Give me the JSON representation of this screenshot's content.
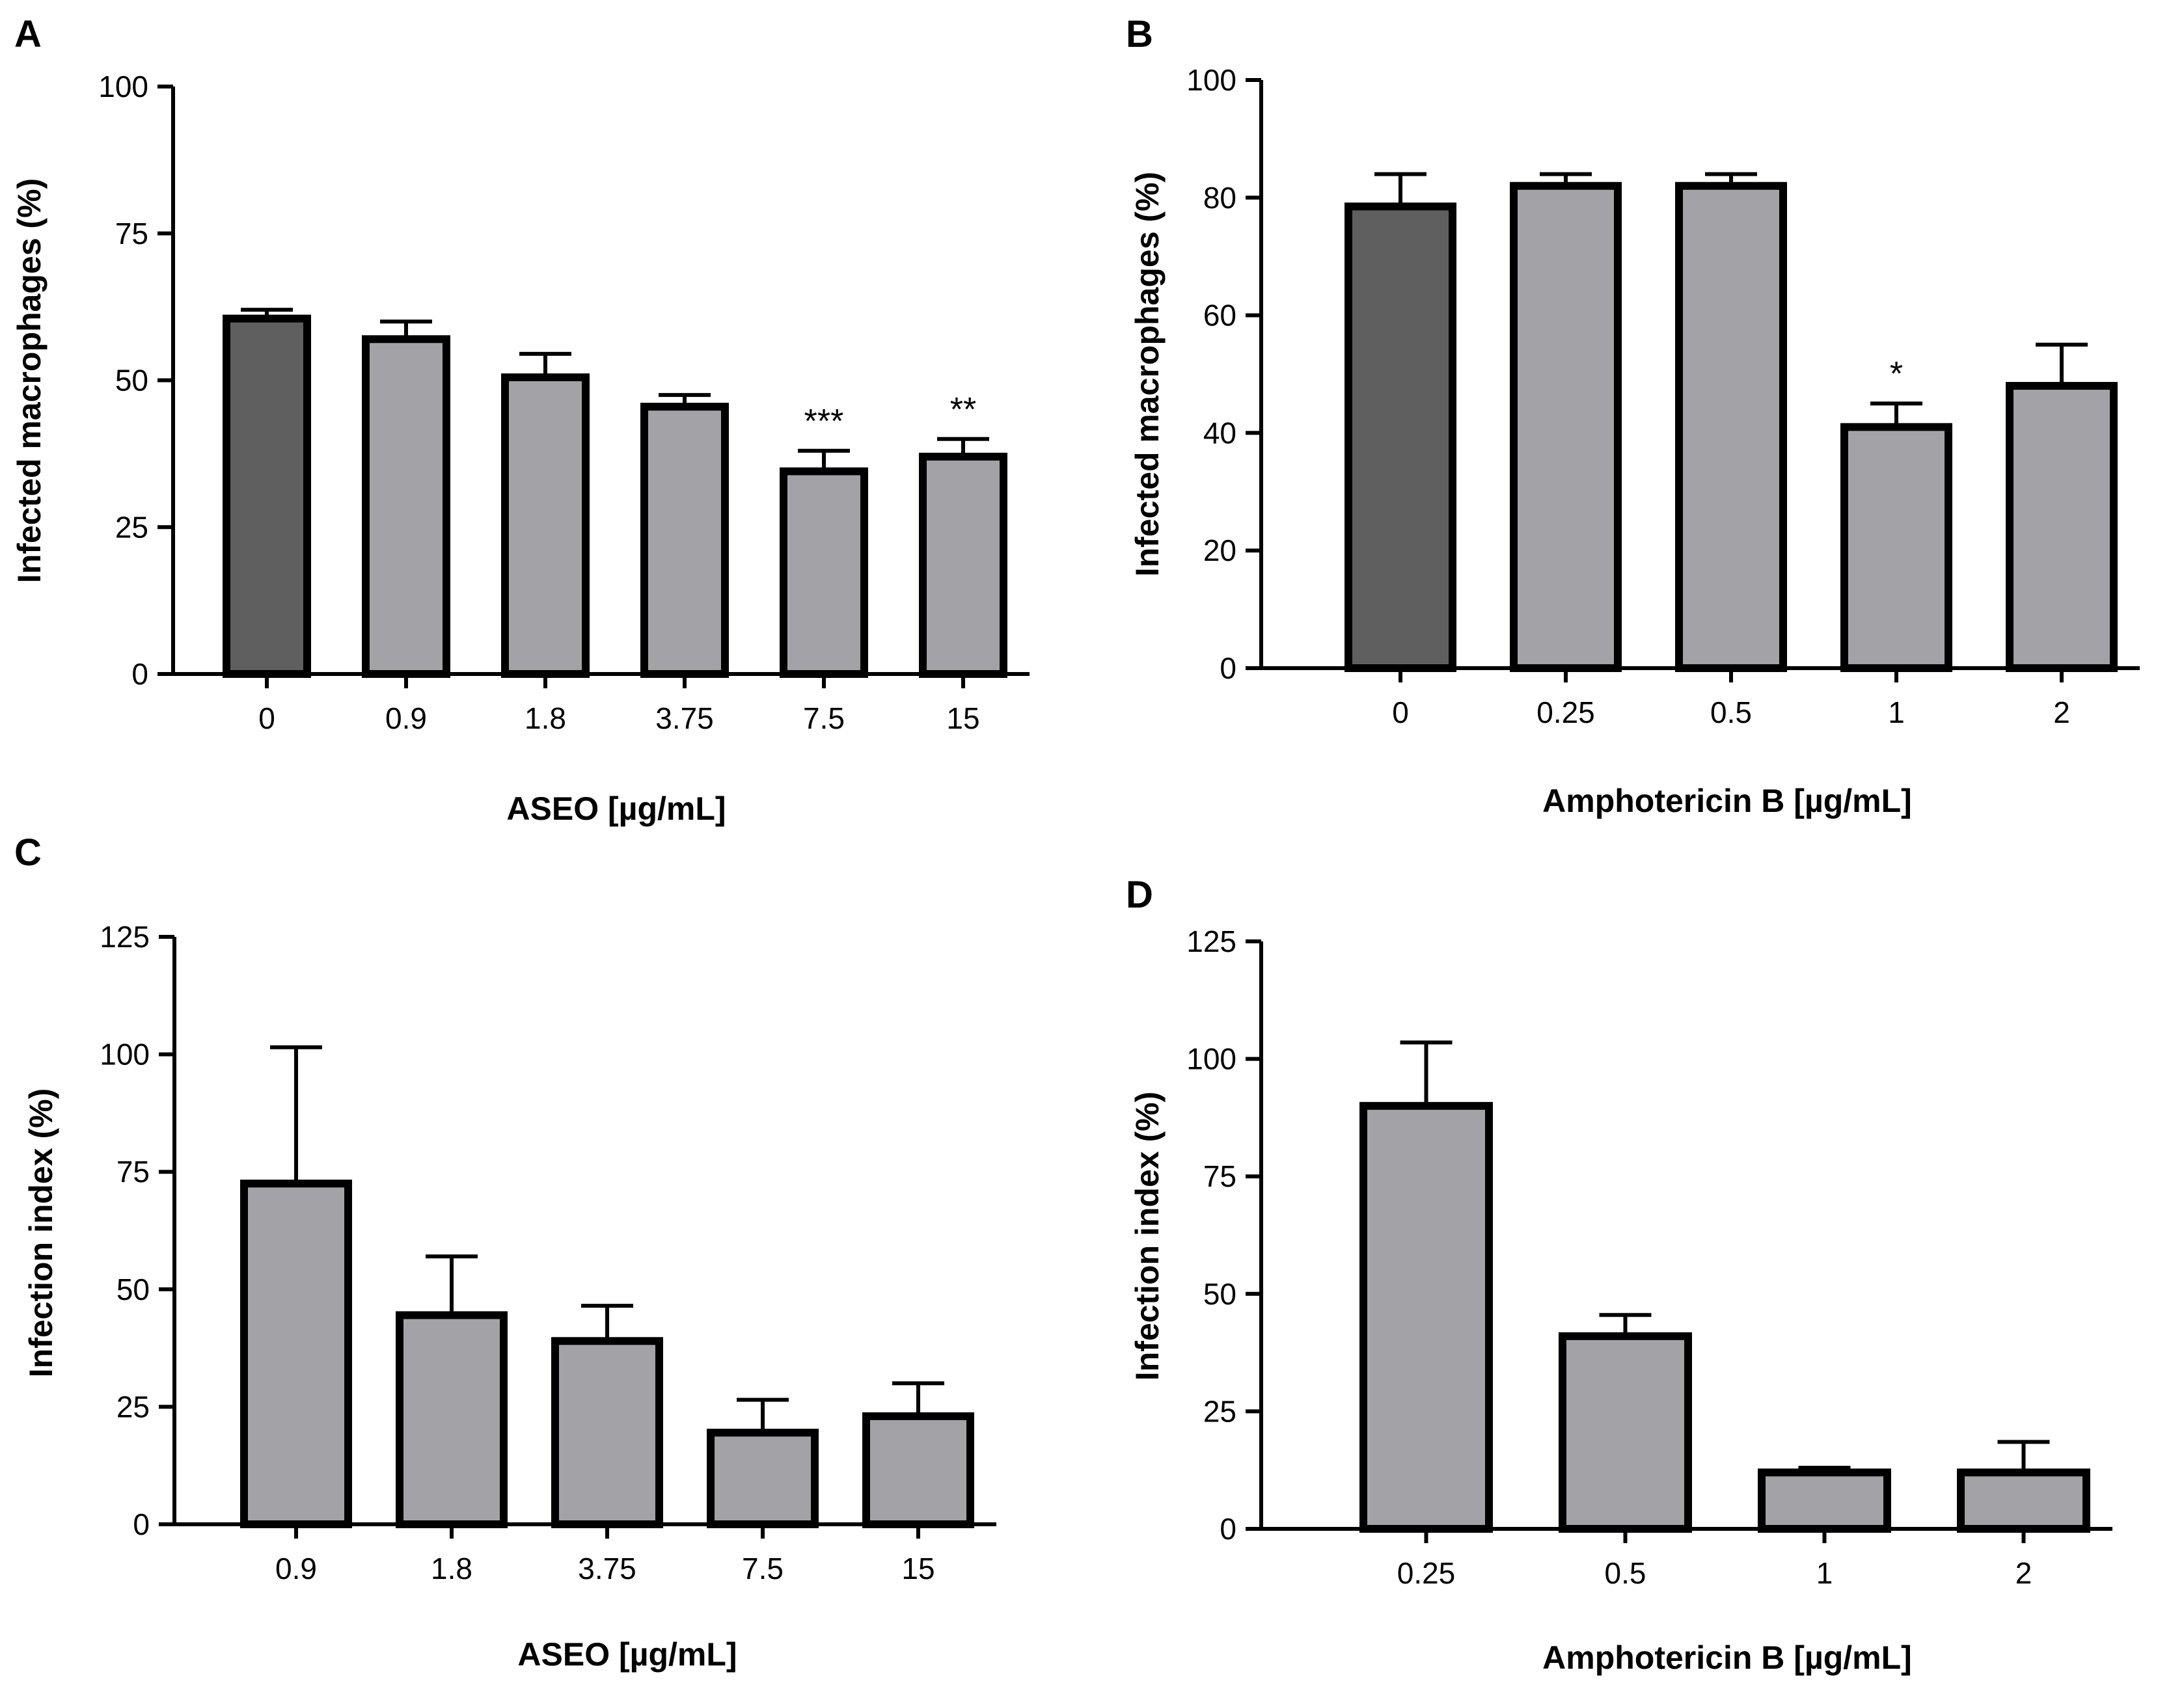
{
  "figure_colors": {
    "control_bar": "#5f5f5f",
    "treatment_bar": "#a3a3a7",
    "stroke": "#000000",
    "background": "#ffffff"
  },
  "chart_data": [
    {
      "panel": "A",
      "type": "bar",
      "categories": [
        "0",
        "0.9",
        "1.8",
        "3.75",
        "7.5",
        "15"
      ],
      "values": [
        60.5,
        57,
        50.5,
        45.5,
        34.5,
        37
      ],
      "errors": [
        1.5,
        3,
        4,
        2,
        3.5,
        3
      ],
      "significance": [
        "",
        "",
        "",
        "",
        "***",
        "**"
      ],
      "control_index": 0,
      "xlabel": "ASEO [µg/mL]",
      "ylabel": "Infected macrophages (%)",
      "ylim": [
        0,
        100
      ],
      "yticks": [
        0,
        25,
        50,
        75,
        100
      ],
      "ytick_labels": [
        "0",
        "25",
        "50",
        "75",
        "100"
      ]
    },
    {
      "panel": "B",
      "type": "bar",
      "categories": [
        "0",
        "0.25",
        "0.5",
        "1",
        "2"
      ],
      "values": [
        78.5,
        82,
        82,
        41,
        48
      ],
      "errors": [
        5.5,
        2,
        2,
        4,
        7
      ],
      "significance": [
        "",
        "",
        "",
        "*",
        ""
      ],
      "control_index": 0,
      "xlabel": "Amphotericin B [µg/mL]",
      "ylabel": "Infected macrophages (%)",
      "ylim": [
        0,
        100
      ],
      "yticks": [
        0,
        20,
        40,
        60,
        80,
        100
      ],
      "ytick_labels": [
        "0",
        "20",
        "40",
        "60",
        "80",
        "100"
      ]
    },
    {
      "panel": "C",
      "type": "bar",
      "categories": [
        "0.9",
        "1.8",
        "3.75",
        "7.5",
        "15"
      ],
      "values": [
        72.5,
        44.5,
        39,
        19.5,
        23
      ],
      "errors": [
        29,
        12.5,
        7.5,
        7,
        7
      ],
      "significance": [
        "",
        "",
        "",
        "",
        ""
      ],
      "control_index": -1,
      "xlabel": "ASEO [µg/mL]",
      "ylabel": "Infection index (%)",
      "ylim": [
        0,
        125
      ],
      "yticks": [
        0,
        25,
        50,
        75,
        100,
        125
      ],
      "ytick_labels": [
        "0",
        "25",
        "50",
        "75",
        "100",
        "125"
      ]
    },
    {
      "panel": "D",
      "type": "bar",
      "categories": [
        "0.25",
        "0.5",
        "1",
        "2"
      ],
      "values": [
        90,
        41,
        12,
        12
      ],
      "errors": [
        13.5,
        4.5,
        1,
        6.5
      ],
      "significance": [
        "",
        "",
        "",
        ""
      ],
      "control_index": -1,
      "xlabel": "Amphotericin B [µg/mL]",
      "ylabel": "Infection index (%)",
      "ylim": [
        0,
        125
      ],
      "yticks": [
        0,
        25,
        50,
        75,
        100,
        125
      ],
      "ytick_labels": [
        "0",
        "25",
        "50",
        "75",
        "100",
        "125"
      ]
    }
  ]
}
